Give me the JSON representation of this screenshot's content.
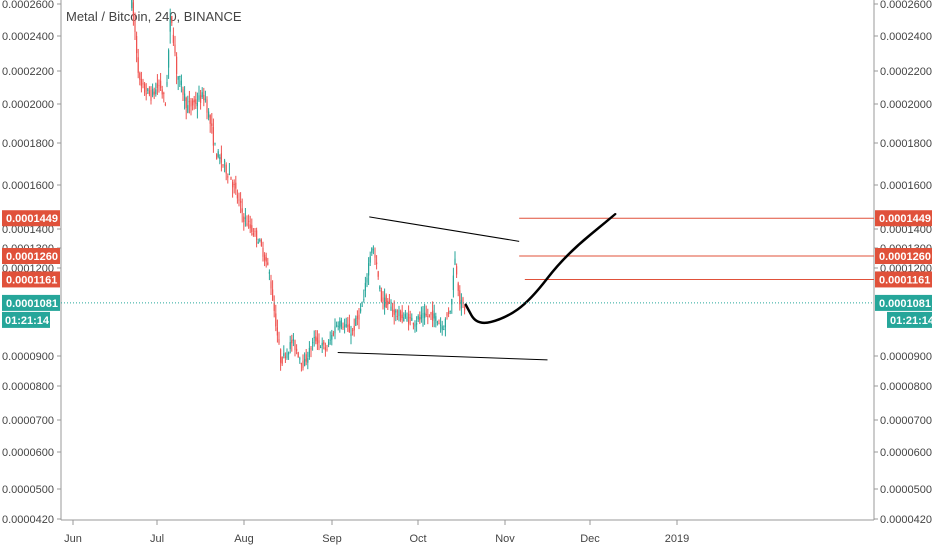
{
  "chart_data": {
    "type": "candlestick",
    "title": "Metal / Bitcoin, 240, BINANCE",
    "y_axis": {
      "scale": "log",
      "range": [
        4.2e-05,
        0.00026
      ],
      "ticks": [
        "0.0002600",
        "0.0002400",
        "0.0002200",
        "0.0002000",
        "0.0001800",
        "0.0001600",
        "0.0001400",
        "0.0001300",
        "0.0001200",
        "0.0000900",
        "0.0000800",
        "0.0000700",
        "0.0000600",
        "0.0000500",
        "0.0000420"
      ]
    },
    "x_axis": {
      "ticks": [
        "Jun",
        "Jul",
        "Aug",
        "Sep",
        "Oct",
        "Nov",
        "Dec",
        "2019"
      ]
    },
    "price_tags": [
      {
        "label": "0.0001449",
        "value": 0.0001449,
        "color": "#e0513a"
      },
      {
        "label": "0.0001260",
        "value": 0.000126,
        "color": "#e0513a"
      },
      {
        "label": "0.0001161",
        "value": 0.0001161,
        "color": "#e0513a"
      },
      {
        "label": "0.0001081",
        "value": 0.0001081,
        "color": "#26a69a"
      }
    ],
    "countdown": "01:21:14",
    "current_price": 0.0001081,
    "colors": {
      "up": "#26a69a",
      "down": "#ef5350",
      "level": "#e0513a",
      "drawing": "#000000",
      "current": "#26a69a"
    },
    "price_path": [
      {
        "date": "2018-06-22",
        "price": 0.000262
      },
      {
        "date": "2018-06-25",
        "price": 0.00021
      },
      {
        "date": "2018-06-29",
        "price": 0.000205
      },
      {
        "date": "2018-07-02",
        "price": 0.000212
      },
      {
        "date": "2018-07-04",
        "price": 0.0002
      },
      {
        "date": "2018-07-06",
        "price": 0.000255
      },
      {
        "date": "2018-07-08",
        "price": 0.00022
      },
      {
        "date": "2018-07-12",
        "price": 0.000198
      },
      {
        "date": "2018-07-18",
        "price": 0.000205
      },
      {
        "date": "2018-07-22",
        "price": 0.000175
      },
      {
        "date": "2018-07-27",
        "price": 0.000165
      },
      {
        "date": "2018-08-01",
        "price": 0.000145
      },
      {
        "date": "2018-08-06",
        "price": 0.000135
      },
      {
        "date": "2018-08-10",
        "price": 0.000118
      },
      {
        "date": "2018-08-14",
        "price": 8.8e-05
      },
      {
        "date": "2018-08-18",
        "price": 9.5e-05
      },
      {
        "date": "2018-08-22",
        "price": 8.7e-05
      },
      {
        "date": "2018-08-26",
        "price": 9.6e-05
      },
      {
        "date": "2018-08-30",
        "price": 9.2e-05
      },
      {
        "date": "2018-09-03",
        "price": 0.000102
      },
      {
        "date": "2018-09-08",
        "price": 9.8e-05
      },
      {
        "date": "2018-09-12",
        "price": 0.000108
      },
      {
        "date": "2018-09-15",
        "price": 0.000132
      },
      {
        "date": "2018-09-18",
        "price": 0.00011
      },
      {
        "date": "2018-09-24",
        "price": 0.000104
      },
      {
        "date": "2018-09-30",
        "price": 0.000102
      },
      {
        "date": "2018-10-06",
        "price": 0.000104
      },
      {
        "date": "2018-10-10",
        "price": 0.0001
      },
      {
        "date": "2018-10-13",
        "price": 0.000108
      },
      {
        "date": "2018-10-14",
        "price": 0.000126
      },
      {
        "date": "2018-10-16",
        "price": 0.000108
      },
      {
        "date": "2018-10-18",
        "price": 0.000106
      }
    ],
    "annotations": {
      "trendlines": [
        {
          "from": {
            "date": "2018-09-14",
            "price": 0.0001455
          },
          "to": {
            "date": "2018-11-06",
            "price": 0.0001335
          }
        },
        {
          "from": {
            "date": "2018-09-03",
            "price": 9.12e-05
          },
          "to": {
            "date": "2018-11-16",
            "price": 8.87e-05
          }
        }
      ],
      "horizontal_levels": [
        {
          "value": 0.0001449,
          "from_date": "2018-11-06"
        },
        {
          "value": 0.000126,
          "from_date": "2018-11-06"
        },
        {
          "value": 0.0001161,
          "from_date": "2018-11-08"
        }
      ],
      "projection_curve": [
        {
          "date": "2018-10-18",
          "price": 0.0001075
        },
        {
          "date": "2018-10-22",
          "price": 0.0001004
        },
        {
          "date": "2018-11-01",
          "price": 0.0001028
        },
        {
          "date": "2018-11-10",
          "price": 0.000109
        },
        {
          "date": "2018-11-22",
          "price": 0.000126
        },
        {
          "date": "2018-12-10",
          "price": 0.0001467
        }
      ]
    }
  }
}
